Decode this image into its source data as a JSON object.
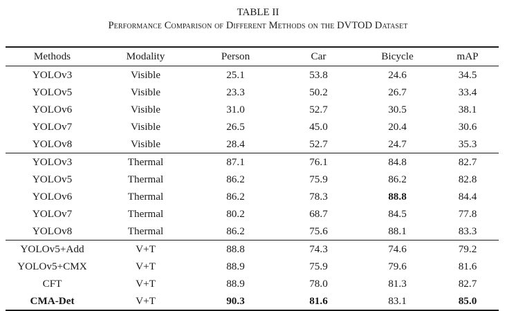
{
  "caption": {
    "table_number": "TABLE II",
    "title": "Performance Comparison of Different Methods on the DVTOD Dataset"
  },
  "headers": [
    "Methods",
    "Modality",
    "Person",
    "Car",
    "Bicycle",
    "mAP"
  ],
  "groups": [
    {
      "rows": [
        {
          "method": "YOLOv3",
          "modality": "Visible",
          "person": "25.1",
          "car": "53.8",
          "bicycle": "24.6",
          "map": "34.5"
        },
        {
          "method": "YOLOv5",
          "modality": "Visible",
          "person": "23.3",
          "car": "50.2",
          "bicycle": "26.7",
          "map": "33.4"
        },
        {
          "method": "YOLOv6",
          "modality": "Visible",
          "person": "31.0",
          "car": "52.7",
          "bicycle": "30.5",
          "map": "38.1"
        },
        {
          "method": "YOLOv7",
          "modality": "Visible",
          "person": "26.5",
          "car": "45.0",
          "bicycle": "20.4",
          "map": "30.6"
        },
        {
          "method": "YOLOv8",
          "modality": "Visible",
          "person": "28.4",
          "car": "52.7",
          "bicycle": "24.7",
          "map": "35.3"
        }
      ]
    },
    {
      "rows": [
        {
          "method": "YOLOv3",
          "modality": "Thermal",
          "person": "87.1",
          "car": "76.1",
          "bicycle": "84.8",
          "map": "82.7"
        },
        {
          "method": "YOLOv5",
          "modality": "Thermal",
          "person": "86.2",
          "car": "75.9",
          "bicycle": "86.2",
          "map": "82.8"
        },
        {
          "method": "YOLOv6",
          "modality": "Thermal",
          "person": "86.2",
          "car": "78.3",
          "bicycle": "88.8",
          "map": "84.4"
        },
        {
          "method": "YOLOv7",
          "modality": "Thermal",
          "person": "80.2",
          "car": "68.7",
          "bicycle": "84.5",
          "map": "77.8"
        },
        {
          "method": "YOLOv8",
          "modality": "Thermal",
          "person": "86.2",
          "car": "75.6",
          "bicycle": "88.1",
          "map": "83.3"
        }
      ]
    },
    {
      "rows": [
        {
          "method": "YOLOv5+Add",
          "modality": "V+T",
          "person": "88.8",
          "car": "74.3",
          "bicycle": "74.6",
          "map": "79.2"
        },
        {
          "method": "YOLOv5+CMX",
          "modality": "V+T",
          "person": "88.9",
          "car": "75.9",
          "bicycle": "79.6",
          "map": "81.6"
        },
        {
          "method": "CFT",
          "modality": "V+T",
          "person": "88.9",
          "car": "78.0",
          "bicycle": "81.3",
          "map": "82.7"
        },
        {
          "method": "CMA-Det",
          "modality": "V+T",
          "person": "90.3",
          "car": "81.6",
          "bicycle": "83.1",
          "map": "85.0"
        }
      ]
    }
  ],
  "bold_cells": [
    "1.2.bicycle",
    "2.3.method",
    "2.3.person",
    "2.3.car",
    "2.3.map"
  ]
}
